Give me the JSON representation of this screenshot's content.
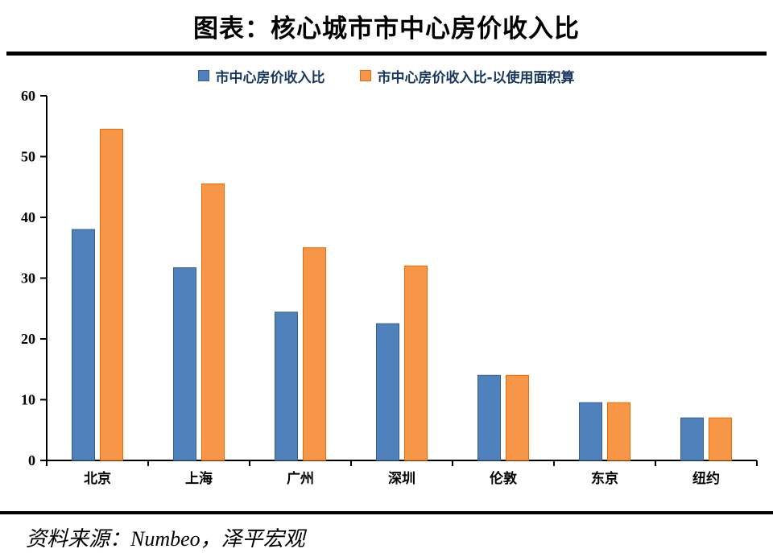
{
  "title": "图表：核心城市市中心房价收入比",
  "source": "资料来源：Numbeo，泽平宏观",
  "chart_data": {
    "type": "bar",
    "title": "图表：核心城市市中心房价收入比",
    "categories": [
      "北京",
      "上海",
      "广州",
      "深圳",
      "伦敦",
      "东京",
      "纽约"
    ],
    "series": [
      {
        "name": "市中心房价收入比",
        "color": "#4F81BD",
        "border": "#385D8A",
        "values": [
          38,
          31.7,
          24.4,
          22.5,
          14,
          9.5,
          7
        ]
      },
      {
        "name": "市中心房价收入比-以使用面积算",
        "color": "#F79646",
        "border": "#E36C09",
        "values": [
          54.5,
          45.5,
          35,
          32,
          14,
          9.5,
          7
        ]
      }
    ],
    "xlabel": "",
    "ylabel": "",
    "ylim": [
      0,
      60
    ],
    "yticks": [
      0,
      10,
      20,
      30,
      40,
      50,
      60
    ],
    "grid": false,
    "legend_position": "top"
  }
}
